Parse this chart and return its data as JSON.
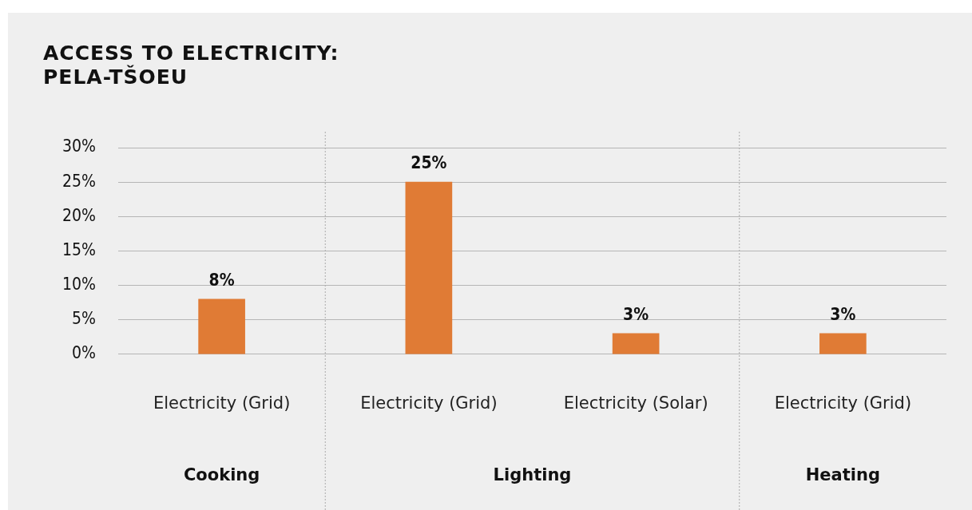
{
  "chart_data": {
    "type": "bar",
    "title": "ACCESS TO ELECTRICITY: PELA-TŠOEU",
    "categories": [
      "Electricity (Grid)",
      "Electricity (Grid)",
      "Electricity (Solar)",
      "Electricity (Grid)"
    ],
    "values": [
      8,
      25,
      3,
      3
    ],
    "value_labels": [
      "8%",
      "25%",
      "3%",
      "3%"
    ],
    "color": "#e07b35",
    "ylim": [
      0,
      30
    ],
    "yticks": [
      {
        "value": 0,
        "label": "0%"
      },
      {
        "value": 5,
        "label": "5%"
      },
      {
        "value": 10,
        "label": "10%"
      },
      {
        "value": 15,
        "label": "15%"
      },
      {
        "value": 20,
        "label": "20%"
      },
      {
        "value": 25,
        "label": "25%"
      },
      {
        "value": 30,
        "label": "30%"
      }
    ],
    "grid": "y",
    "legend": false,
    "annotations": [
      "Cooking",
      "Lighting",
      "Heating"
    ]
  }
}
